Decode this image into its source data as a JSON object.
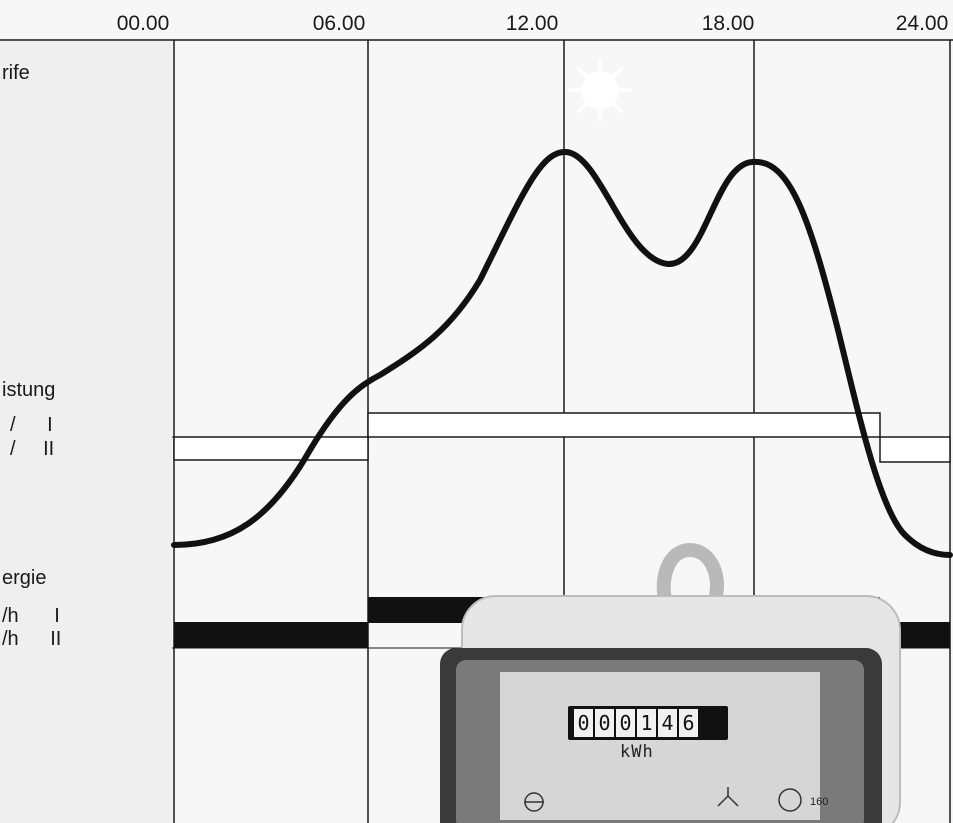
{
  "header": {
    "time_labels": [
      "00.00",
      "06.00",
      "12.00",
      "18.00",
      "24.00"
    ]
  },
  "sections": {
    "tariffs": "rife",
    "power": "istung",
    "energy": "ergie"
  },
  "tariff_rows": {
    "power_1_prefix": "/",
    "power_1_roman": "I",
    "power_2_prefix": "/",
    "power_2_roman": "II",
    "energy_1_prefix": "/h",
    "energy_1_roman": "I",
    "energy_2_prefix": "/h",
    "energy_2_roman": "II"
  },
  "meter": {
    "digits": [
      "0",
      "0",
      "0",
      "1",
      "4",
      "6"
    ],
    "unit": "kWh",
    "rating": "160"
  },
  "icons": [
    "moon-icon",
    "sun-icon",
    "meter-icon"
  ],
  "colors": {
    "background": "#f7f7f7",
    "grid": "#1a1a1a",
    "curve": "#111111",
    "bar_fill": "#ffffff",
    "energy_bar": "#111111"
  }
}
